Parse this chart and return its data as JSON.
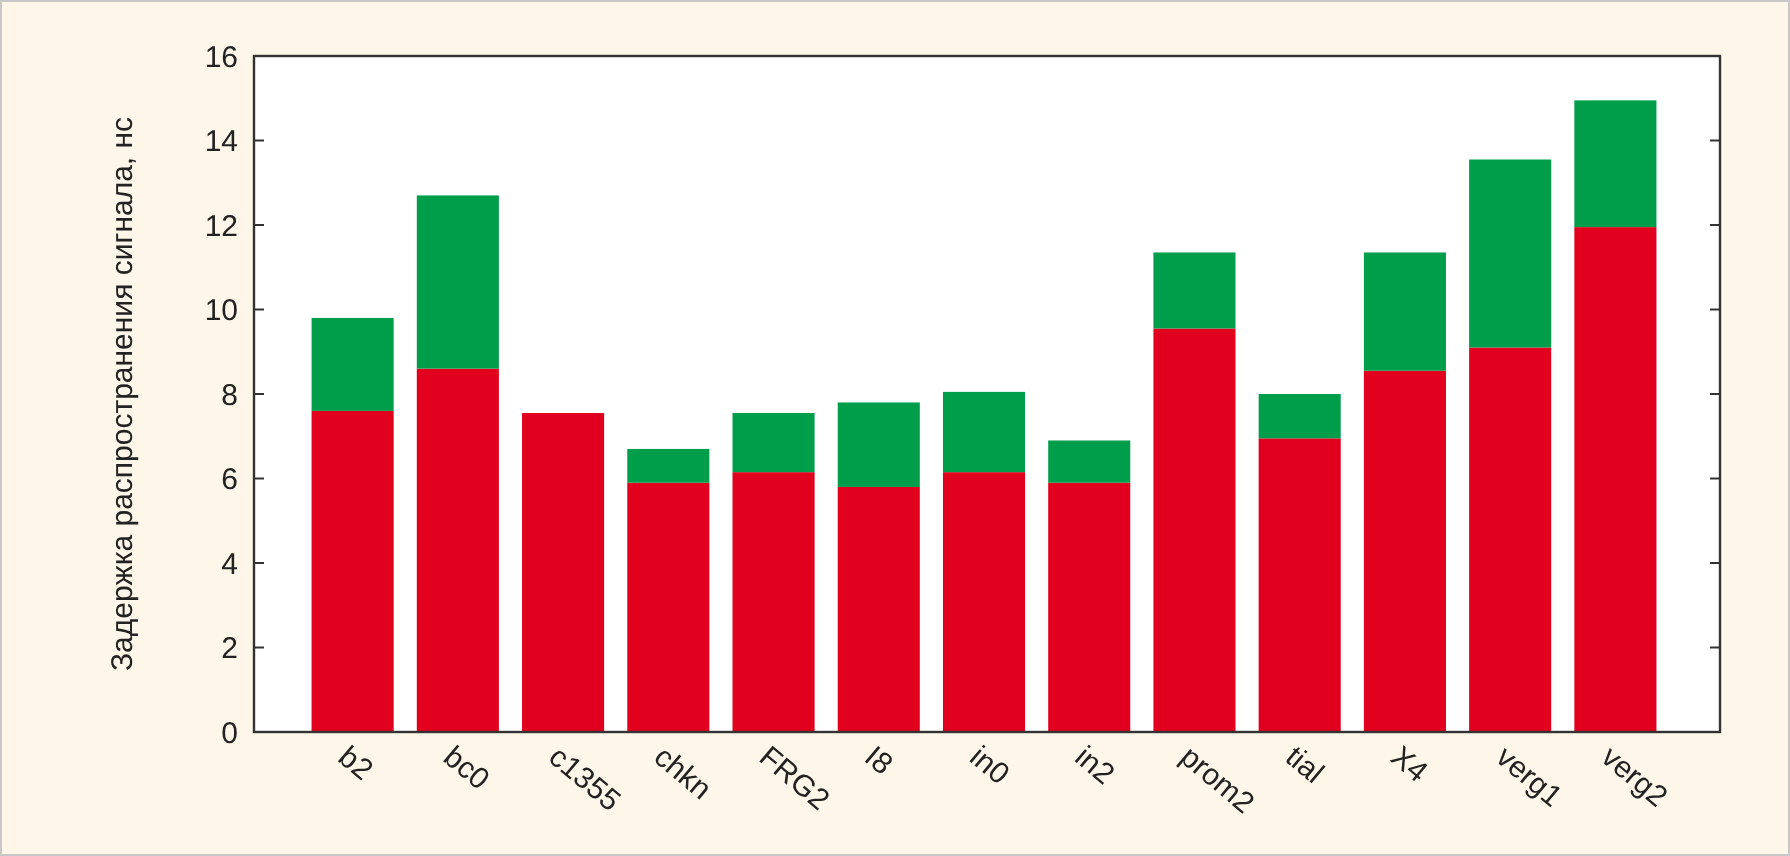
{
  "chart_data": {
    "type": "bar",
    "stacked": true,
    "ylabel": "Задержка распространения сигнала, нс",
    "categories": [
      "b2",
      "bc0",
      "c1355",
      "chkn",
      "FRG2",
      "I8",
      "in0",
      "in2",
      "prom2",
      "tial",
      "X4",
      "verg1",
      "verg2"
    ],
    "series": [
      {
        "color": "#e2001f",
        "values": [
          7.6,
          8.6,
          7.55,
          5.9,
          6.15,
          5.8,
          6.15,
          5.9,
          9.55,
          6.95,
          8.55,
          9.1,
          11.95
        ]
      },
      {
        "color": "#009e4b",
        "values": [
          2.2,
          4.1,
          null,
          0.8,
          1.4,
          2.0,
          1.9,
          1.0,
          1.8,
          1.05,
          2.8,
          4.45,
          3.0
        ]
      }
    ],
    "ylim": [
      0,
      16
    ],
    "yticks": [
      0,
      2,
      4,
      6,
      8,
      10,
      12,
      14,
      16
    ]
  }
}
